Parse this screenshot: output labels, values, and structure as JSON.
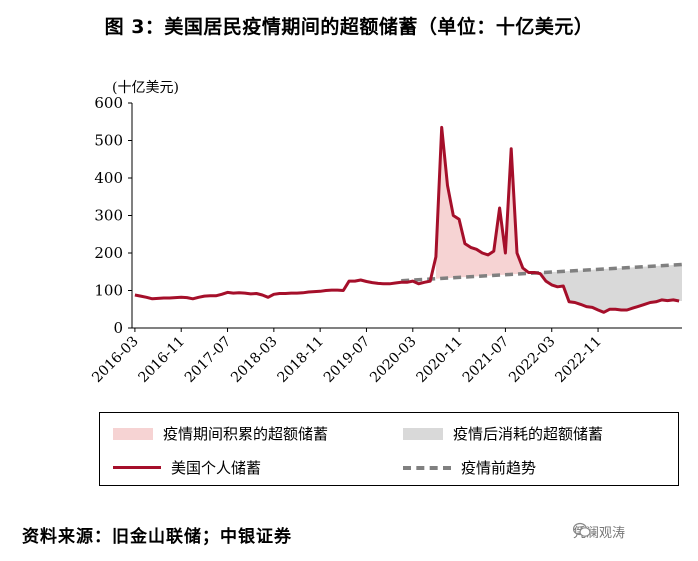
{
  "title": "图 3：美国居民疫情期间的超额储蓄（单位：十亿美元）",
  "unit_label": "(十亿美元)",
  "legend": {
    "item1": "疫情期间积累的超额储蓄",
    "item2": "疫情后消耗的超额储蓄",
    "item3": "美国个人储蓄",
    "item4": "疫情前趋势"
  },
  "source": "资料来源：旧金山联储；中银证券",
  "watermark": "凭澜观涛",
  "colors": {
    "savings_line": "#a50f2a",
    "trend_line": "#808080",
    "excess_accumulated_fill": "#f6d3d3",
    "excess_consumed_fill": "#d9d9d9"
  },
  "chart_data": {
    "type": "line",
    "ylim": [
      0,
      600
    ],
    "yticks": [
      0,
      100,
      200,
      300,
      400,
      500,
      600
    ],
    "xtick_labels": [
      "2016-03",
      "2016-11",
      "2017-07",
      "2018-03",
      "2018-11",
      "2019-07",
      "2020-03",
      "2020-11",
      "2021-07",
      "2022-03",
      "2022-11"
    ],
    "series": [
      {
        "name": "美国个人储蓄",
        "start": "2016-03",
        "frequency": "monthly",
        "values": [
          88,
          85,
          82,
          78,
          79,
          80,
          80,
          81,
          82,
          81,
          78,
          82,
          85,
          86,
          86,
          90,
          95,
          93,
          94,
          93,
          91,
          92,
          88,
          82,
          90,
          92,
          92,
          93,
          93,
          94,
          96,
          97,
          98,
          100,
          101,
          101,
          100,
          125,
          125,
          128,
          124,
          121,
          119,
          118,
          118,
          120,
          122,
          122,
          125,
          118,
          122,
          125,
          190,
          535,
          380,
          300,
          290,
          225,
          215,
          210,
          200,
          195,
          205,
          320,
          200,
          478,
          200,
          160,
          148,
          148,
          145,
          125,
          115,
          110,
          112,
          70,
          68,
          63,
          57,
          55,
          48,
          42,
          50,
          50,
          48,
          48,
          53,
          58,
          63,
          68,
          70,
          75,
          73,
          75,
          72
        ]
      },
      {
        "name": "疫情前趋势",
        "start": "2020-01",
        "end": "2023-12",
        "values": [
          126,
          168
        ]
      }
    ]
  }
}
